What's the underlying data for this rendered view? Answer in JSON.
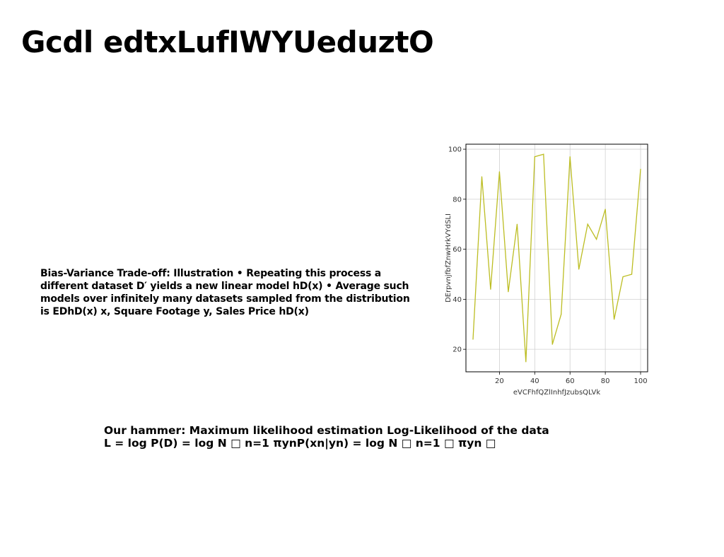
{
  "slide": {
    "title": "Gcdl edtxLufIWYUeduztO",
    "body": "Bias-Variance Trade-off: Illustration • Repeating this process a different dataset D′ yields a new linear model hD(x) • Average such models over infinitely many datasets sampled from the distribution is EDhD(x) x, Square Footage y, Sales Price hD(x)",
    "hammer": "Our hammer: Maximum likelihood estimation Log-Likelihood of the data L = log P(D) = log N □ n=1 πynP(xn|yn) = log N □ n=1 □ πyn □"
  },
  "chart_data": {
    "type": "line",
    "xlabel": "eVCFhfQZlInhfJzubsQLVk",
    "ylabel": "DErpvnjfbfZnwHrkVYdSLI",
    "xlim": [
      1,
      104
    ],
    "ylim": [
      11,
      102
    ],
    "xticks": [
      20,
      40,
      60,
      80,
      100
    ],
    "yticks": [
      20,
      40,
      60,
      80,
      100
    ],
    "grid": true,
    "line_color": "#bcbd22",
    "series": [
      {
        "x": [
          5,
          10,
          15,
          20,
          25,
          30,
          35,
          40,
          45,
          50,
          55,
          60,
          65,
          70,
          75,
          80,
          85,
          90,
          95,
          100
        ],
        "y": [
          24,
          89,
          44,
          91,
          43,
          70,
          15,
          97,
          98,
          22,
          34,
          97,
          52,
          70,
          64,
          76,
          32,
          49,
          50,
          92
        ]
      }
    ]
  }
}
